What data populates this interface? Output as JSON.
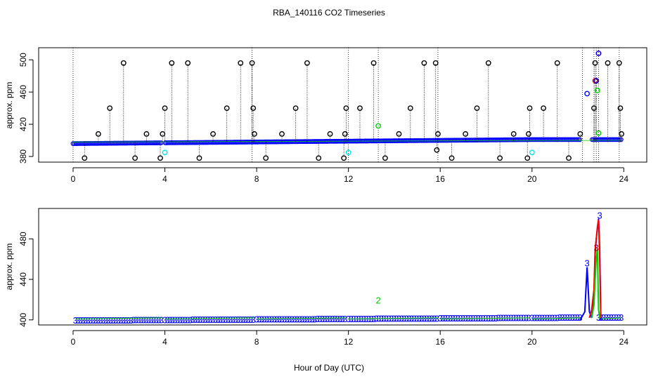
{
  "title": "RBA_140116  CO2 Timeseries",
  "xlabel": "Hour of Day (UTC)",
  "chart_data": [
    {
      "type": "scatter",
      "ylabel": "approx. ppm",
      "xlim": [
        -1.5,
        25
      ],
      "ylim": [
        373,
        515
      ],
      "x_ticks": [
        "0",
        "4",
        "8",
        "12",
        "16",
        "20",
        "24"
      ],
      "y_ticks": [
        "380",
        "420",
        "460",
        "500"
      ],
      "colors": {
        "blue": "#0000ff",
        "black": "#000000",
        "green": "#00cc00",
        "cyan": "#00e5ee",
        "red": "#ff0000",
        "grid": "#000000"
      },
      "series": [
        {
          "name": "blue",
          "x": [
            0,
            0.5,
            1,
            1.5,
            2,
            2.5,
            3,
            3.5,
            3.9,
            4.5,
            5,
            5.5,
            6,
            6.5,
            7,
            7.5,
            7.9,
            8.5,
            9,
            9.5,
            10,
            10.5,
            11,
            11.5,
            11.9,
            12.5,
            13,
            13.5,
            14,
            14.5,
            15,
            15.5,
            15.9,
            16.5,
            17,
            17.5,
            18,
            18.5,
            19,
            19.5,
            19.9,
            20.5,
            21,
            21.5,
            22.2,
            22.7,
            22.9,
            23.5,
            23.9
          ],
          "y": [
            396,
            397,
            398,
            398,
            398,
            399,
            399,
            399,
            398,
            399,
            399,
            399,
            399,
            399,
            400,
            400,
            399,
            400,
            400,
            400,
            400,
            400,
            400,
            401,
            400,
            401,
            401,
            400,
            400,
            400,
            400,
            400,
            399,
            400,
            400,
            400,
            400,
            400,
            400,
            401,
            399,
            400,
            400,
            400,
            400,
            400,
            400,
            400,
            400
          ]
        },
        {
          "name": "black",
          "x": [
            0.5,
            1.1,
            1.6,
            2.2,
            2.7,
            3.2,
            3.8,
            3.9,
            4.0,
            4.3,
            5.0,
            5.5,
            6.1,
            6.7,
            7.3,
            7.8,
            7.85,
            7.9,
            8.4,
            9.1,
            9.7,
            10.2,
            10.7,
            11.2,
            11.8,
            11.85,
            11.9,
            12.5,
            13.1,
            13.6,
            14.2,
            14.7,
            15.3,
            15.8,
            15.85,
            15.9,
            16.5,
            17.1,
            17.6,
            18.1,
            18.6,
            19.2,
            19.8,
            19.85,
            19.9,
            20.5,
            21.1,
            21.6,
            22.1,
            22.7,
            22.75,
            22.8,
            23.3,
            23.8,
            23.85,
            23.9
          ],
          "y": [
            378,
            408,
            440,
            496,
            378,
            408,
            378,
            408,
            440,
            496,
            496,
            378,
            408,
            440,
            496,
            496,
            440,
            408,
            378,
            408,
            440,
            496,
            378,
            408,
            378,
            408,
            440,
            440,
            496,
            378,
            408,
            440,
            496,
            496,
            388,
            408,
            378,
            408,
            440,
            496,
            378,
            408,
            378,
            408,
            440,
            440,
            496,
            378,
            408,
            440,
            496,
            474,
            496,
            496,
            440,
            408
          ],
          "stems_to": 398
        },
        {
          "name": "green",
          "x": [
            13.3,
            22.85,
            22.9
          ],
          "y": [
            418,
            462,
            409
          ]
        },
        {
          "name": "cyan",
          "x": [
            4.0,
            12.0,
            20.0
          ],
          "y": [
            385,
            385,
            385
          ]
        },
        {
          "name": "red",
          "x": [
            22.75,
            22.9
          ],
          "y": [
            474,
            508
          ]
        },
        {
          "name": "blue-high",
          "x": [
            22.4,
            22.8,
            22.9
          ],
          "y": [
            458,
            474,
            508
          ]
        }
      ]
    },
    {
      "type": "line",
      "ylabel": "approx. ppm",
      "xlim": [
        -1.5,
        25
      ],
      "ylim": [
        395,
        510
      ],
      "x_ticks": [
        "0",
        "4",
        "8",
        "12",
        "16",
        "20",
        "24"
      ],
      "y_ticks": [
        "400",
        "440",
        "480"
      ],
      "marker_label": "3",
      "annotations": [
        {
          "x": 13.3,
          "y": 416,
          "text": "2",
          "color": "#00cc00"
        },
        {
          "x": 22.4,
          "y": 453,
          "text": "3",
          "color": "#0000ff"
        },
        {
          "x": 22.8,
          "y": 468,
          "text": "3",
          "color": "#8b0000"
        },
        {
          "x": 22.95,
          "y": 500,
          "text": "3",
          "color": "#0000ff"
        }
      ],
      "segments": [
        [
          0.1,
          3.9
        ],
        [
          4.0,
          7.9
        ],
        [
          8.0,
          11.9
        ],
        [
          12.0,
          15.9
        ],
        [
          16.0,
          19.9
        ],
        [
          20.0,
          22.1
        ],
        [
          22.9,
          23.9
        ]
      ],
      "series": [
        {
          "name": "blue",
          "color": "#0000ff",
          "x": [
            22.1,
            22.3,
            22.4,
            22.5,
            22.6,
            22.7,
            22.75,
            22.8,
            22.85,
            22.9,
            22.95,
            23.0
          ],
          "y": [
            400,
            408,
            452,
            408,
            402,
            420,
            465,
            480,
            490,
            500,
            470,
            400
          ]
        },
        {
          "name": "red",
          "color": "#ff0000",
          "x": [
            22.5,
            22.6,
            22.7,
            22.75,
            22.8,
            22.85,
            22.9,
            22.95,
            23.0
          ],
          "y": [
            402,
            410,
            430,
            470,
            480,
            492,
            499,
            460,
            402
          ]
        },
        {
          "name": "green",
          "color": "#00cc00",
          "x": [
            22.6,
            22.7,
            22.75,
            22.8,
            22.85,
            22.9,
            22.95
          ],
          "y": [
            402,
            415,
            440,
            460,
            470,
            410,
            402
          ]
        }
      ]
    }
  ]
}
